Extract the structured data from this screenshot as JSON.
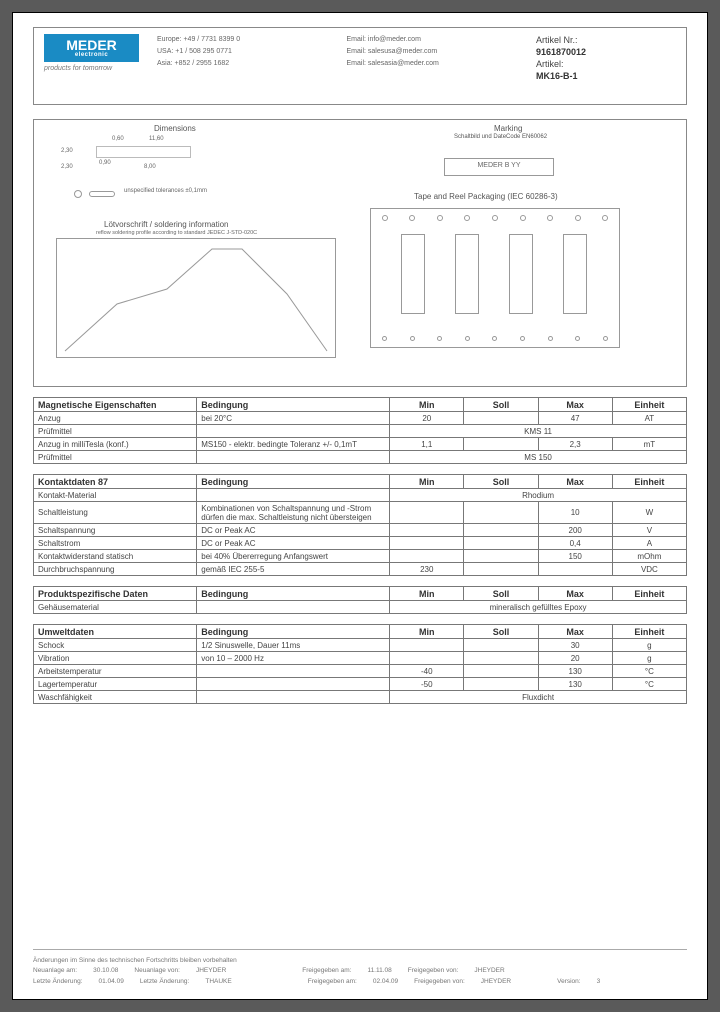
{
  "header": {
    "logo": "MEDER",
    "logo_sub": "electronic",
    "tagline": "products for tomorrow",
    "contacts": {
      "europe": "Europe: +49 / 7731 8399 0",
      "usa": "USA: +1 / 508 295 0771",
      "asia": "Asia: +852 / 2955 1682",
      "email1": "Email: info@meder.com",
      "email2": "Email: salesusa@meder.com",
      "email3": "Email: salesasia@meder.com"
    },
    "article": {
      "nr_label": "Artikel Nr.:",
      "nr": "9161870012",
      "name_label": "Artikel:",
      "name": "MK16-B-1"
    }
  },
  "diagram": {
    "dimensions_title": "Dimensions",
    "marking_title": "Marking",
    "marking_sub": "Schaltbild und DateCode EN60062",
    "marking_box": "MEDER  B  YY",
    "tape_title": "Tape and Reel Packaging (IEC 60286-3)",
    "solder_title": "Lötvorschrift / soldering information",
    "solder_sub": "reflow soldering profile according to standard JEDEC J-STD-020C",
    "unspec_note": "unspecified tolerances ±0,1mm",
    "dims": {
      "d1": "0,60",
      "d2": "11,60",
      "d3": "2,30",
      "d4": "0,90",
      "d5": "8,00"
    }
  },
  "tables": {
    "t1": {
      "title": "Magnetische Eigenschaften",
      "headers": [
        "Bedingung",
        "Min",
        "Soll",
        "Max",
        "Einheit"
      ],
      "rows": [
        {
          "prop": "Anzug",
          "cond": "bei 20°C",
          "min": "20",
          "soll": "",
          "max": "47",
          "unit": "AT"
        },
        {
          "prop": "Prüfmittel",
          "merge": "KMS 11"
        },
        {
          "prop": "Anzug in milliTesla (konf.)",
          "cond": "MS150 - elektr. bedingte Toleranz +/- 0,1mT",
          "min": "1,1",
          "soll": "",
          "max": "2,3",
          "unit": "mT"
        },
        {
          "prop": "Prüfmittel",
          "merge": "MS 150"
        }
      ]
    },
    "t2": {
      "title": "Kontaktdaten  87",
      "rows": [
        {
          "prop": "Kontakt-Material",
          "merge": "Rhodium"
        },
        {
          "prop": "Schaltleistung",
          "cond": "Kombinationen von Schaltspannung und -Strom dürfen die max. Schaltleistung nicht übersteigen",
          "min": "",
          "soll": "",
          "max": "10",
          "unit": "W"
        },
        {
          "prop": "Schaltspannung",
          "cond": "DC or Peak AC",
          "min": "",
          "soll": "",
          "max": "200",
          "unit": "V"
        },
        {
          "prop": "Schaltstrom",
          "cond": "DC or Peak AC",
          "min": "",
          "soll": "",
          "max": "0,4",
          "unit": "A"
        },
        {
          "prop": "Kontaktwiderstand statisch",
          "cond": "bei 40% Übererregung Anfangswert",
          "min": "",
          "soll": "",
          "max": "150",
          "unit": "mOhm"
        },
        {
          "prop": "Durchbruchspannung",
          "cond": "gemäß IEC 255-5",
          "min": "230",
          "soll": "",
          "max": "",
          "unit": "VDC"
        }
      ]
    },
    "t3": {
      "title": "Produktspezifische Daten",
      "rows": [
        {
          "prop": "Gehäusematerial",
          "merge": "mineralisch gefülltes Epoxy"
        }
      ]
    },
    "t4": {
      "title": "Umweltdaten",
      "rows": [
        {
          "prop": "Schock",
          "cond": "1/2 Sinuswelle, Dauer 11ms",
          "min": "",
          "soll": "",
          "max": "30",
          "unit": "g"
        },
        {
          "prop": "Vibration",
          "cond": "von 10 – 2000 Hz",
          "min": "",
          "soll": "",
          "max": "20",
          "unit": "g"
        },
        {
          "prop": "Arbeitstemperatur",
          "cond": "",
          "min": "-40",
          "soll": "",
          "max": "130",
          "unit": "°C"
        },
        {
          "prop": "Lagertemperatur",
          "cond": "",
          "min": "-50",
          "soll": "",
          "max": "130",
          "unit": "°C"
        },
        {
          "prop": "Waschfähigkeit",
          "merge": "Fluxdicht"
        }
      ]
    }
  },
  "footer": {
    "disclaimer": "Änderungen im Sinne des technischen Fortschritts bleiben vorbehalten",
    "r1": {
      "a": "Neuanlage am:",
      "av": "30.10.08",
      "b": "Neuanlage von:",
      "bv": "JHEYDER",
      "c": "Freigegeben am:",
      "cv": "11.11.08",
      "d": "Freigegeben von:",
      "dv": "JHEYDER"
    },
    "r2": {
      "a": "Letzte Änderung:",
      "av": "01.04.09",
      "b": "Letzte Änderung:",
      "bv": "THAUKE",
      "c": "Freigegeben am:",
      "cv": "02.04.09",
      "d": "Freigegeben von:",
      "dv": "JHEYDER",
      "e": "Version:",
      "ev": "3"
    }
  }
}
